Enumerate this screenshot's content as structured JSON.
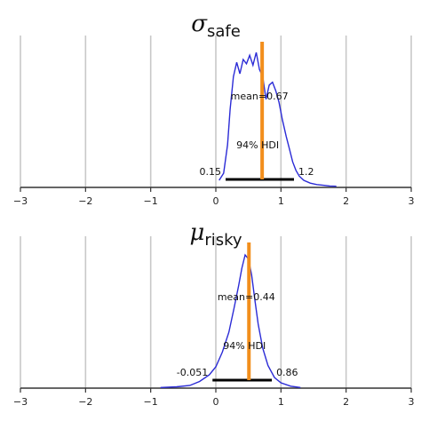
{
  "chart_data": [
    {
      "type": "density",
      "title": {
        "symbol": "σ",
        "subscript": "safe"
      },
      "xlim": [
        -3,
        3
      ],
      "xticks": [
        "−3",
        "−2",
        "−1",
        "0",
        "1",
        "2",
        "3"
      ],
      "mean": 0.67,
      "mean_label": "mean=0.67",
      "hdi": [
        0.15,
        1.2
      ],
      "hdi_labels": [
        "0.15",
        "1.2"
      ],
      "hdi_text": "94% HDI",
      "colors": {
        "density": "#2b2bd6",
        "mean_line": "#f28e1c",
        "hdi": "#000000"
      },
      "density": {
        "x": [
          0.05,
          0.12,
          0.18,
          0.22,
          0.27,
          0.32,
          0.37,
          0.42,
          0.47,
          0.52,
          0.57,
          0.62,
          0.67,
          0.72,
          0.77,
          0.82,
          0.87,
          0.92,
          0.97,
          1.02,
          1.08,
          1.13,
          1.18,
          1.23,
          1.28,
          1.35,
          1.45,
          1.55,
          1.65,
          1.75,
          1.85
        ],
        "y": [
          0.05,
          0.1,
          0.3,
          0.55,
          0.78,
          0.88,
          0.8,
          0.9,
          0.87,
          0.93,
          0.86,
          0.95,
          0.83,
          0.78,
          0.62,
          0.72,
          0.74,
          0.68,
          0.6,
          0.48,
          0.36,
          0.27,
          0.18,
          0.12,
          0.08,
          0.05,
          0.03,
          0.02,
          0.015,
          0.01,
          0.008
        ]
      }
    },
    {
      "type": "density",
      "title": {
        "symbol": "μ",
        "subscript": "risky"
      },
      "xlim": [
        -3,
        3
      ],
      "xticks": [
        "−3",
        "−2",
        "−1",
        "0",
        "1",
        "2",
        "3"
      ],
      "mean": 0.44,
      "mean_label": "mean=0.44",
      "hdi": [
        -0.051,
        0.86
      ],
      "hdi_labels": [
        "-0.051",
        "0.86"
      ],
      "hdi_text": "94% HDI",
      "colors": {
        "density": "#2b2bd6",
        "mean_line": "#f28e1c",
        "hdi": "#000000"
      },
      "density": {
        "x": [
          -0.85,
          -0.6,
          -0.4,
          -0.25,
          -0.1,
          0.0,
          0.1,
          0.2,
          0.28,
          0.35,
          0.4,
          0.45,
          0.5,
          0.55,
          0.6,
          0.65,
          0.72,
          0.8,
          0.9,
          1.0,
          1.15,
          1.3
        ],
        "y": [
          0.005,
          0.01,
          0.02,
          0.05,
          0.1,
          0.16,
          0.27,
          0.42,
          0.6,
          0.77,
          0.9,
          1.0,
          0.97,
          0.85,
          0.66,
          0.48,
          0.3,
          0.17,
          0.08,
          0.04,
          0.015,
          0.005
        ]
      }
    }
  ]
}
